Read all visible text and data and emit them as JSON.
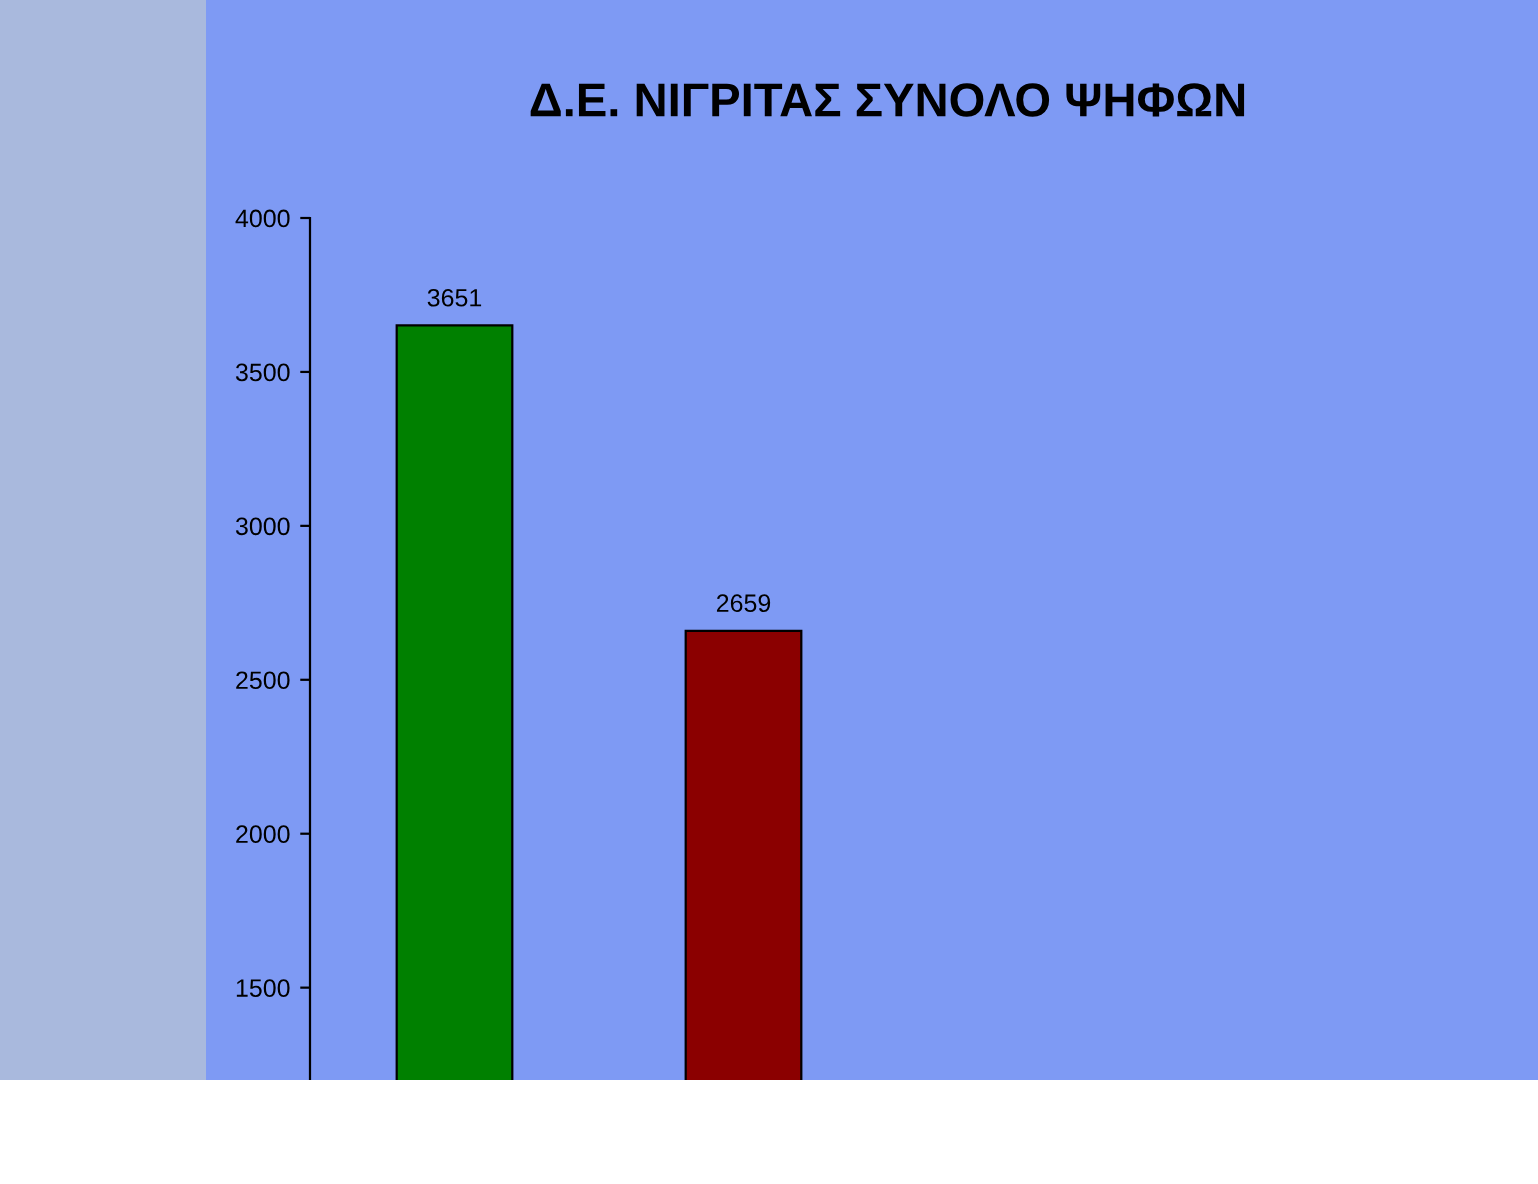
{
  "chart_data": {
    "type": "bar",
    "title": "Δ.Ε. ΝΙΓΡΙΤΑΣ ΣΥΝΟΛΟ ΨΗΦΩΝ",
    "categories": [
      null,
      null
    ],
    "values": [
      3651,
      2659
    ],
    "colors": [
      "#008000",
      "#8b0000"
    ],
    "ylim": [
      1200,
      4000
    ],
    "yticks": [
      1500,
      2000,
      2500,
      3000,
      3500,
      4000
    ],
    "grid": false,
    "data_labels": true,
    "tick_labels": "y"
  }
}
